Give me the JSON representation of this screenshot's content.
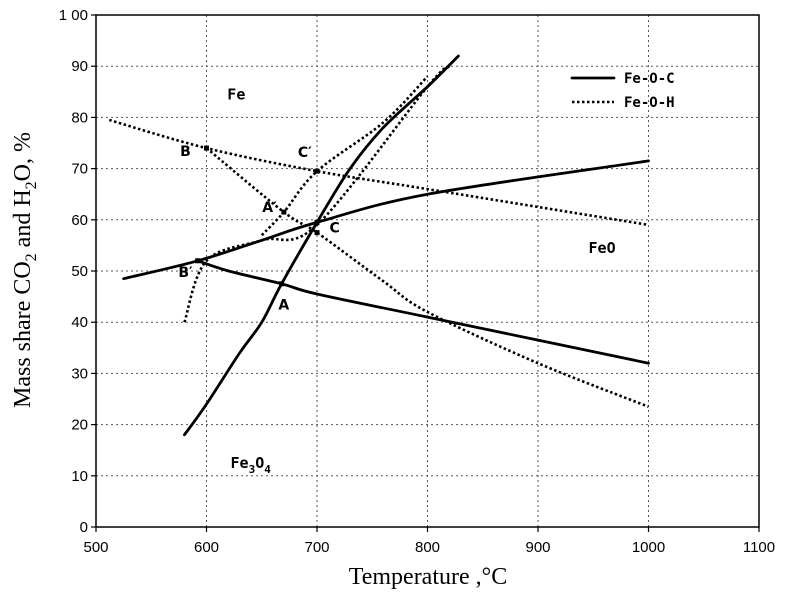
{
  "chart_data": {
    "type": "line",
    "xlabel": "Temperature ,°C",
    "ylabel": {
      "prefix": "Mass share CO",
      "sub1": "2",
      "mid": " and H",
      "sub2": "2",
      "suffix": "O,  %"
    },
    "xlim": [
      500,
      1100
    ],
    "ylim": [
      0,
      100
    ],
    "xticks": [
      500,
      600,
      700,
      800,
      900,
      1000,
      1100
    ],
    "yticks": [
      0,
      10,
      20,
      30,
      40,
      50,
      60,
      70,
      80,
      90,
      100
    ],
    "ytick_labels": [
      "0",
      "10",
      "20",
      "30",
      "40",
      "50",
      "60",
      "70",
      "80",
      "90",
      "1 00"
    ],
    "grid": true,
    "legend": {
      "position": "top-right",
      "entries": [
        {
          "label": "Fe-O-C",
          "style": "solid"
        },
        {
          "label": "Fe-O-H",
          "style": "dotted"
        }
      ]
    },
    "series": [
      {
        "group": "Fe-O-C",
        "style": "solid",
        "x": [
          525,
          592,
          650,
          700,
          800,
          1000
        ],
        "y": [
          48.5,
          52,
          56,
          59.5,
          65,
          71.5
        ]
      },
      {
        "group": "Fe-O-C",
        "style": "solid",
        "x": [
          592,
          620,
          668,
          700,
          800,
          1000
        ],
        "y": [
          52,
          50,
          47.5,
          45.5,
          41,
          32
        ]
      },
      {
        "group": "Fe-O-C",
        "style": "solid",
        "x": [
          580,
          600,
          630,
          650,
          668,
          700,
          730,
          760,
          800,
          828
        ],
        "y": [
          18,
          24,
          34,
          40,
          47.5,
          59.5,
          70,
          78,
          86,
          92
        ]
      },
      {
        "group": "Fe-O-H",
        "style": "dotted",
        "x": [
          512,
          600,
          700,
          800,
          1000
        ],
        "y": [
          79.5,
          74,
          69.5,
          66,
          59
        ]
      },
      {
        "group": "Fe-O-H",
        "style": "dotted",
        "x": [
          580,
          600,
          650,
          700,
          800,
          820
        ],
        "y": [
          40,
          52,
          56,
          59,
          86,
          90
        ]
      },
      {
        "group": "Fe-O-H",
        "style": "dotted",
        "x": [
          600,
          670,
          700,
          760,
          800,
          900,
          1000
        ],
        "y": [
          74,
          61.5,
          57.5,
          48,
          42,
          32,
          23.5
        ]
      },
      {
        "group": "Fe-O-H",
        "style": "dotted",
        "x": [
          650,
          670,
          700,
          760,
          800
        ],
        "y": [
          57,
          61.5,
          69.5,
          79,
          88
        ]
      }
    ],
    "annotations": [
      {
        "label": "Fe",
        "x": 627,
        "y": 83.5,
        "kind": "region"
      },
      {
        "label": "FeO",
        "x": 958,
        "y": 53.5,
        "kind": "region"
      },
      {
        "label": "Fe",
        "sub": "3",
        "label2": "O",
        "sub2": "4",
        "x": 640,
        "y": 11.5,
        "kind": "region"
      },
      {
        "label": "B",
        "x": 581,
        "y": 72.5,
        "kind": "point"
      },
      {
        "label": "C′",
        "x": 689,
        "y": 72.3,
        "kind": "point"
      },
      {
        "label": "A′",
        "x": 657,
        "y": 61.5,
        "kind": "point"
      },
      {
        "label": "C",
        "x": 716,
        "y": 57.5,
        "kind": "point"
      },
      {
        "label": "B′",
        "x": 581,
        "y": 48.8,
        "kind": "point"
      },
      {
        "label": "A",
        "x": 670,
        "y": 42.5,
        "kind": "point"
      }
    ],
    "markers": [
      {
        "x": 600,
        "y": 74
      },
      {
        "x": 670,
        "y": 61.5
      },
      {
        "x": 700,
        "y": 69.5
      },
      {
        "x": 700,
        "y": 57.5
      },
      {
        "x": 700,
        "y": 59.5
      },
      {
        "x": 592,
        "y": 52
      },
      {
        "x": 668,
        "y": 47.5
      }
    ]
  }
}
